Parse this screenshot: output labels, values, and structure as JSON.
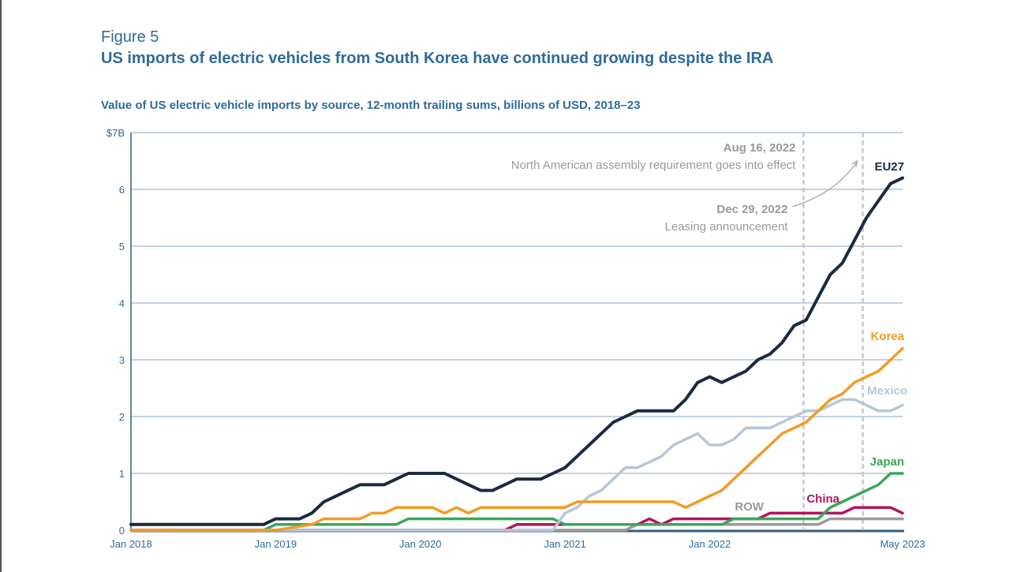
{
  "figure_label": "Figure 5",
  "title": "US imports of electric vehicles from South Korea have continued growing despite the IRA",
  "subtitle": "Value of US electric vehicle imports by source, 12-month trailing sums, billions of USD, 2018–23",
  "chart_data": {
    "type": "line",
    "x_start": "2018-01",
    "x_end": "2023-05",
    "ylim": [
      0,
      7
    ],
    "y_ticks": [
      {
        "value": 0,
        "label": "0"
      },
      {
        "value": 1,
        "label": "1"
      },
      {
        "value": 2,
        "label": "2"
      },
      {
        "value": 3,
        "label": "3"
      },
      {
        "value": 4,
        "label": "4"
      },
      {
        "value": 5,
        "label": "5"
      },
      {
        "value": 6,
        "label": "6"
      },
      {
        "value": 7,
        "label": "$7B"
      }
    ],
    "x_ticks": [
      {
        "date": "2018-01",
        "label": "Jan 2018"
      },
      {
        "date": "2019-01",
        "label": "Jan 2019"
      },
      {
        "date": "2020-01",
        "label": "Jan 2020"
      },
      {
        "date": "2021-01",
        "label": "Jan 2021"
      },
      {
        "date": "2022-01",
        "label": "Jan 2022"
      },
      {
        "date": "2023-05",
        "label": "May 2023"
      }
    ],
    "annotations": [
      {
        "date": "2022-08",
        "title": "Aug 16, 2022",
        "text": "North American assembly requirement goes into effect"
      },
      {
        "date": "2022-12",
        "title": "Dec 29, 2022",
        "text": "Leasing announcement"
      }
    ],
    "series": [
      {
        "name": "EU27",
        "color": "#1b2a41",
        "points": [
          [
            "2018-01",
            0.1
          ],
          [
            "2018-06",
            0.1
          ],
          [
            "2018-12",
            0.1
          ],
          [
            "2019-01",
            0.2
          ],
          [
            "2019-02",
            0.2
          ],
          [
            "2019-03",
            0.2
          ],
          [
            "2019-04",
            0.3
          ],
          [
            "2019-05",
            0.5
          ],
          [
            "2019-06",
            0.6
          ],
          [
            "2019-07",
            0.7
          ],
          [
            "2019-08",
            0.8
          ],
          [
            "2019-09",
            0.8
          ],
          [
            "2019-10",
            0.8
          ],
          [
            "2019-11",
            0.9
          ],
          [
            "2019-12",
            1.0
          ],
          [
            "2020-01",
            1.0
          ],
          [
            "2020-02",
            1.0
          ],
          [
            "2020-03",
            1.0
          ],
          [
            "2020-04",
            0.9
          ],
          [
            "2020-05",
            0.8
          ],
          [
            "2020-06",
            0.7
          ],
          [
            "2020-07",
            0.7
          ],
          [
            "2020-08",
            0.8
          ],
          [
            "2020-09",
            0.9
          ],
          [
            "2020-10",
            0.9
          ],
          [
            "2020-11",
            0.9
          ],
          [
            "2020-12",
            1.0
          ],
          [
            "2021-01",
            1.1
          ],
          [
            "2021-02",
            1.3
          ],
          [
            "2021-03",
            1.5
          ],
          [
            "2021-04",
            1.7
          ],
          [
            "2021-05",
            1.9
          ],
          [
            "2021-06",
            2.0
          ],
          [
            "2021-07",
            2.1
          ],
          [
            "2021-08",
            2.1
          ],
          [
            "2021-09",
            2.1
          ],
          [
            "2021-10",
            2.1
          ],
          [
            "2021-11",
            2.3
          ],
          [
            "2021-12",
            2.6
          ],
          [
            "2022-01",
            2.7
          ],
          [
            "2022-02",
            2.6
          ],
          [
            "2022-03",
            2.7
          ],
          [
            "2022-04",
            2.8
          ],
          [
            "2022-05",
            3.0
          ],
          [
            "2022-06",
            3.1
          ],
          [
            "2022-07",
            3.3
          ],
          [
            "2022-08",
            3.6
          ],
          [
            "2022-09",
            3.7
          ],
          [
            "2022-10",
            4.1
          ],
          [
            "2022-11",
            4.5
          ],
          [
            "2022-12",
            4.7
          ],
          [
            "2023-01",
            5.1
          ],
          [
            "2023-02",
            5.5
          ],
          [
            "2023-03",
            5.8
          ],
          [
            "2023-04",
            6.1
          ],
          [
            "2023-05",
            6.2
          ]
        ]
      },
      {
        "name": "Korea",
        "color": "#f39b25",
        "points": [
          [
            "2018-01",
            0.0
          ],
          [
            "2019-01",
            0.0
          ],
          [
            "2019-04",
            0.1
          ],
          [
            "2019-05",
            0.2
          ],
          [
            "2019-07",
            0.2
          ],
          [
            "2019-08",
            0.2
          ],
          [
            "2019-09",
            0.3
          ],
          [
            "2019-10",
            0.3
          ],
          [
            "2019-11",
            0.4
          ],
          [
            "2020-01",
            0.4
          ],
          [
            "2020-02",
            0.4
          ],
          [
            "2020-03",
            0.3
          ],
          [
            "2020-04",
            0.4
          ],
          [
            "2020-05",
            0.3
          ],
          [
            "2020-06",
            0.4
          ],
          [
            "2020-07",
            0.4
          ],
          [
            "2020-12",
            0.4
          ],
          [
            "2021-01",
            0.4
          ],
          [
            "2021-02",
            0.5
          ],
          [
            "2021-03",
            0.5
          ],
          [
            "2021-06",
            0.5
          ],
          [
            "2021-10",
            0.5
          ],
          [
            "2021-11",
            0.4
          ],
          [
            "2021-12",
            0.5
          ],
          [
            "2022-01",
            0.6
          ],
          [
            "2022-02",
            0.7
          ],
          [
            "2022-03",
            0.9
          ],
          [
            "2022-04",
            1.1
          ],
          [
            "2022-05",
            1.3
          ],
          [
            "2022-06",
            1.5
          ],
          [
            "2022-07",
            1.7
          ],
          [
            "2022-08",
            1.8
          ],
          [
            "2022-09",
            1.9
          ],
          [
            "2022-10",
            2.1
          ],
          [
            "2022-11",
            2.3
          ],
          [
            "2022-12",
            2.4
          ],
          [
            "2023-01",
            2.6
          ],
          [
            "2023-02",
            2.7
          ],
          [
            "2023-03",
            2.8
          ],
          [
            "2023-04",
            3.0
          ],
          [
            "2023-05",
            3.2
          ]
        ]
      },
      {
        "name": "Mexico",
        "color": "#b6c7d7",
        "points": [
          [
            "2018-01",
            0.0
          ],
          [
            "2020-12",
            0.0
          ],
          [
            "2021-01",
            0.3
          ],
          [
            "2021-02",
            0.4
          ],
          [
            "2021-03",
            0.6
          ],
          [
            "2021-04",
            0.7
          ],
          [
            "2021-05",
            0.9
          ],
          [
            "2021-06",
            1.1
          ],
          [
            "2021-07",
            1.1
          ],
          [
            "2021-08",
            1.2
          ],
          [
            "2021-09",
            1.3
          ],
          [
            "2021-10",
            1.5
          ],
          [
            "2021-11",
            1.6
          ],
          [
            "2021-12",
            1.7
          ],
          [
            "2022-01",
            1.5
          ],
          [
            "2022-02",
            1.5
          ],
          [
            "2022-03",
            1.6
          ],
          [
            "2022-04",
            1.8
          ],
          [
            "2022-05",
            1.8
          ],
          [
            "2022-06",
            1.8
          ],
          [
            "2022-07",
            1.9
          ],
          [
            "2022-08",
            2.0
          ],
          [
            "2022-09",
            2.1
          ],
          [
            "2022-10",
            2.1
          ],
          [
            "2022-11",
            2.2
          ],
          [
            "2022-12",
            2.3
          ],
          [
            "2023-01",
            2.3
          ],
          [
            "2023-02",
            2.2
          ],
          [
            "2023-03",
            2.1
          ],
          [
            "2023-04",
            2.1
          ],
          [
            "2023-05",
            2.2
          ]
        ]
      },
      {
        "name": "Japan",
        "color": "#3aa757",
        "points": [
          [
            "2018-01",
            0.0
          ],
          [
            "2018-12",
            0.0
          ],
          [
            "2019-01",
            0.1
          ],
          [
            "2019-11",
            0.1
          ],
          [
            "2019-12",
            0.2
          ],
          [
            "2020-12",
            0.2
          ],
          [
            "2021-01",
            0.1
          ],
          [
            "2022-01",
            0.1
          ],
          [
            "2022-02",
            0.1
          ],
          [
            "2022-03",
            0.2
          ],
          [
            "2022-10",
            0.2
          ],
          [
            "2022-11",
            0.4
          ],
          [
            "2022-12",
            0.5
          ],
          [
            "2023-01",
            0.6
          ],
          [
            "2023-02",
            0.7
          ],
          [
            "2023-03",
            0.8
          ],
          [
            "2023-04",
            1.0
          ],
          [
            "2023-05",
            1.0
          ]
        ]
      },
      {
        "name": "China",
        "color": "#b5135f",
        "points": [
          [
            "2018-01",
            0.0
          ],
          [
            "2020-08",
            0.0
          ],
          [
            "2020-09",
            0.1
          ],
          [
            "2021-07",
            0.1
          ],
          [
            "2021-08",
            0.2
          ],
          [
            "2021-09",
            0.1
          ],
          [
            "2021-10",
            0.2
          ],
          [
            "2022-05",
            0.2
          ],
          [
            "2022-06",
            0.3
          ],
          [
            "2022-12",
            0.3
          ],
          [
            "2023-01",
            0.4
          ],
          [
            "2023-04",
            0.4
          ],
          [
            "2023-05",
            0.3
          ]
        ]
      },
      {
        "name": "ROW",
        "color": "#9a9a9a",
        "points": [
          [
            "2018-01",
            0.0
          ],
          [
            "2021-06",
            0.0
          ],
          [
            "2021-07",
            0.1
          ],
          [
            "2022-10",
            0.1
          ],
          [
            "2022-11",
            0.2
          ],
          [
            "2023-05",
            0.2
          ]
        ]
      }
    ]
  }
}
